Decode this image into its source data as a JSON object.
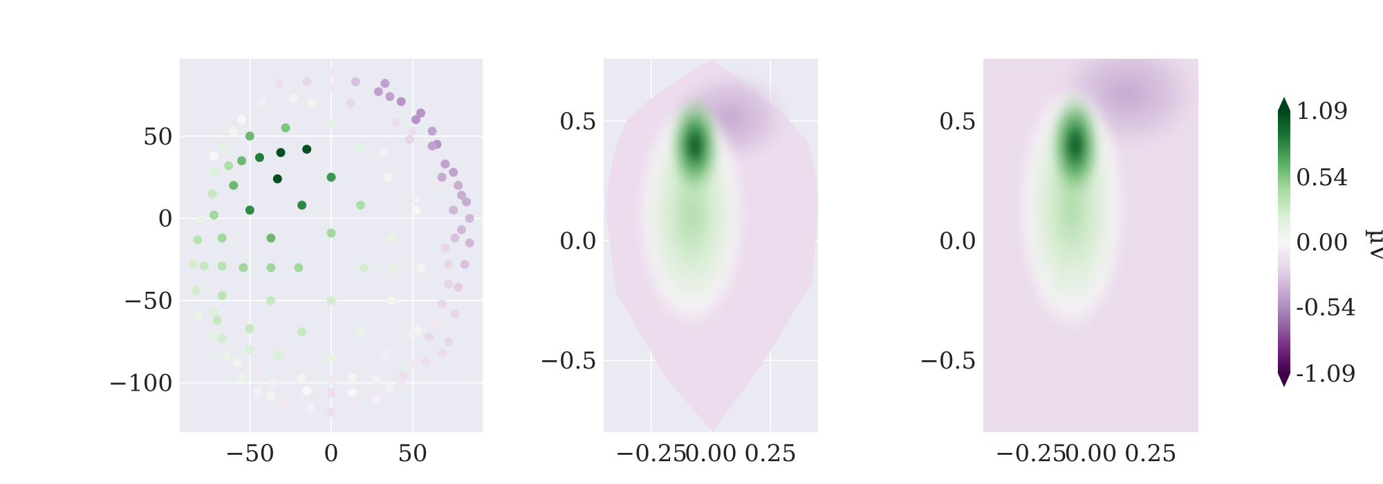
{
  "chart_data": [
    {
      "type": "scatter",
      "title": "",
      "xlabel": "",
      "ylabel": "",
      "xlim": [
        -93,
        93
      ],
      "ylim": [
        -130,
        97
      ],
      "xticks": [
        -50,
        0,
        50
      ],
      "xtick_labels": [
        "−50",
        "0",
        "50"
      ],
      "yticks": [
        50,
        0,
        -50,
        -100
      ],
      "ytick_labels": [
        "50",
        "0",
        "−50",
        "−100"
      ],
      "grid": true,
      "color_scale": "PRGn",
      "points": [
        {
          "x": 0,
          "y": 88,
          "v": -0.1
        },
        {
          "x": 0,
          "y": 80,
          "v": -0.1
        },
        {
          "x": -15,
          "y": 83,
          "v": -0.2
        },
        {
          "x": 15,
          "y": 83,
          "v": -0.3
        },
        {
          "x": -32,
          "y": 82,
          "v": -0.15
        },
        {
          "x": 33,
          "y": 82,
          "v": -0.45
        },
        {
          "x": 29,
          "y": 77,
          "v": -0.45
        },
        {
          "x": 36,
          "y": 74,
          "v": -0.45
        },
        {
          "x": 43,
          "y": 71,
          "v": -0.5
        },
        {
          "x": -42,
          "y": 71,
          "v": -0.05
        },
        {
          "x": -23,
          "y": 73,
          "v": 0.05
        },
        {
          "x": -12,
          "y": 70,
          "v": 0.05
        },
        {
          "x": 12,
          "y": 70,
          "v": -0.2
        },
        {
          "x": 55,
          "y": 64,
          "v": -0.5
        },
        {
          "x": 52,
          "y": 60,
          "v": -0.5
        },
        {
          "x": 62,
          "y": 53,
          "v": -0.45
        },
        {
          "x": 50,
          "y": 53,
          "v": -0.15
        },
        {
          "x": 48,
          "y": 48,
          "v": -0.2
        },
        {
          "x": 65,
          "y": 45,
          "v": -0.5
        },
        {
          "x": 62,
          "y": 44,
          "v": -0.45
        },
        {
          "x": 40,
          "y": 58,
          "v": -0.15
        },
        {
          "x": 28,
          "y": 55,
          "v": -0.1
        },
        {
          "x": -28,
          "y": 55,
          "v": 0.55
        },
        {
          "x": -50,
          "y": 50,
          "v": 0.6
        },
        {
          "x": -60,
          "y": 53,
          "v": 0.05
        },
        {
          "x": -55,
          "y": 60,
          "v": 0.0
        },
        {
          "x": -38,
          "y": 60,
          "v": -0.1
        },
        {
          "x": 0,
          "y": 58,
          "v": 0.15
        },
        {
          "x": -15,
          "y": 42,
          "v": 1.05
        },
        {
          "x": -31,
          "y": 40,
          "v": 1.05
        },
        {
          "x": -44,
          "y": 37,
          "v": 0.85
        },
        {
          "x": -55,
          "y": 35,
          "v": 0.6
        },
        {
          "x": -63,
          "y": 32,
          "v": 0.4
        },
        {
          "x": -72,
          "y": 28,
          "v": 0.2
        },
        {
          "x": -67,
          "y": 44,
          "v": 0.15
        },
        {
          "x": -72,
          "y": 38,
          "v": 0.0
        },
        {
          "x": 17,
          "y": 43,
          "v": 0.15
        },
        {
          "x": 32,
          "y": 40,
          "v": -0.05
        },
        {
          "x": 70,
          "y": 33,
          "v": -0.45
        },
        {
          "x": 75,
          "y": 28,
          "v": -0.45
        },
        {
          "x": 68,
          "y": 25,
          "v": -0.4
        },
        {
          "x": 78,
          "y": 20,
          "v": -0.4
        },
        {
          "x": 80,
          "y": 14,
          "v": -0.4
        },
        {
          "x": 83,
          "y": 10,
          "v": -0.4
        },
        {
          "x": 63,
          "y": 20,
          "v": -0.1
        },
        {
          "x": 75,
          "y": 5,
          "v": -0.35
        },
        {
          "x": 85,
          "y": 0,
          "v": -0.35
        },
        {
          "x": 80,
          "y": -7,
          "v": -0.35
        },
        {
          "x": 85,
          "y": -15,
          "v": -0.35
        },
        {
          "x": 76,
          "y": -12,
          "v": -0.3
        },
        {
          "x": 70,
          "y": -18,
          "v": -0.2
        },
        {
          "x": 52,
          "y": 12,
          "v": -0.05
        },
        {
          "x": 52,
          "y": 5,
          "v": 0.0
        },
        {
          "x": 35,
          "y": 25,
          "v": 0.05
        },
        {
          "x": -33,
          "y": 24,
          "v": 1.05
        },
        {
          "x": -60,
          "y": 20,
          "v": 0.6
        },
        {
          "x": -73,
          "y": 15,
          "v": 0.3
        },
        {
          "x": -50,
          "y": 5,
          "v": 0.8
        },
        {
          "x": -18,
          "y": 8,
          "v": 0.8
        },
        {
          "x": 0,
          "y": 25,
          "v": 0.75
        },
        {
          "x": 18,
          "y": 8,
          "v": 0.4
        },
        {
          "x": -72,
          "y": 2,
          "v": 0.45
        },
        {
          "x": -80,
          "y": 0,
          "v": 0.1
        },
        {
          "x": -82,
          "y": -13,
          "v": 0.35
        },
        {
          "x": -67,
          "y": -12,
          "v": 0.45
        },
        {
          "x": -37,
          "y": -12,
          "v": 0.6
        },
        {
          "x": 0,
          "y": -9,
          "v": 0.45
        },
        {
          "x": 37,
          "y": -12,
          "v": 0.1
        },
        {
          "x": -85,
          "y": -28,
          "v": 0.25
        },
        {
          "x": -78,
          "y": -29,
          "v": 0.3
        },
        {
          "x": -67,
          "y": -29,
          "v": 0.35
        },
        {
          "x": -54,
          "y": -30,
          "v": 0.45
        },
        {
          "x": -37,
          "y": -30,
          "v": 0.45
        },
        {
          "x": -20,
          "y": -30,
          "v": 0.45
        },
        {
          "x": 20,
          "y": -30,
          "v": 0.25
        },
        {
          "x": 38,
          "y": -30,
          "v": 0.15
        },
        {
          "x": 55,
          "y": -30,
          "v": 0.05
        },
        {
          "x": 72,
          "y": -28,
          "v": -0.2
        },
        {
          "x": 82,
          "y": -28,
          "v": -0.3
        },
        {
          "x": 72,
          "y": -40,
          "v": -0.2
        },
        {
          "x": 78,
          "y": -42,
          "v": -0.25
        },
        {
          "x": -83,
          "y": -44,
          "v": 0.25
        },
        {
          "x": -67,
          "y": -47,
          "v": 0.35
        },
        {
          "x": -37,
          "y": -50,
          "v": 0.3
        },
        {
          "x": 0,
          "y": -50,
          "v": 0.25
        },
        {
          "x": 37,
          "y": -50,
          "v": 0.05
        },
        {
          "x": 68,
          "y": -52,
          "v": -0.2
        },
        {
          "x": 76,
          "y": -58,
          "v": -0.2
        },
        {
          "x": -72,
          "y": -57,
          "v": 0.2
        },
        {
          "x": -70,
          "y": -62,
          "v": 0.3
        },
        {
          "x": -82,
          "y": -60,
          "v": 0.1
        },
        {
          "x": 65,
          "y": -65,
          "v": -0.1
        },
        {
          "x": 53,
          "y": -68,
          "v": 0.05
        },
        {
          "x": 60,
          "y": -72,
          "v": -0.2
        },
        {
          "x": -73,
          "y": -71,
          "v": 0.15
        },
        {
          "x": -67,
          "y": -73,
          "v": 0.25
        },
        {
          "x": -50,
          "y": -67,
          "v": 0.3
        },
        {
          "x": -18,
          "y": -69,
          "v": 0.3
        },
        {
          "x": 18,
          "y": -69,
          "v": 0.1
        },
        {
          "x": 50,
          "y": -71,
          "v": -0.05
        },
        {
          "x": 72,
          "y": -75,
          "v": -0.2
        },
        {
          "x": 68,
          "y": -82,
          "v": -0.15
        },
        {
          "x": -64,
          "y": -84,
          "v": 0.1
        },
        {
          "x": -58,
          "y": -88,
          "v": 0.05
        },
        {
          "x": -50,
          "y": -80,
          "v": 0.2
        },
        {
          "x": -33,
          "y": -83,
          "v": 0.2
        },
        {
          "x": 0,
          "y": -85,
          "v": 0.1
        },
        {
          "x": 33,
          "y": -83,
          "v": -0.05
        },
        {
          "x": 58,
          "y": -87,
          "v": -0.15
        },
        {
          "x": 50,
          "y": -88,
          "v": -0.1
        },
        {
          "x": 65,
          "y": -90,
          "v": -0.1
        },
        {
          "x": -55,
          "y": -97,
          "v": 0.1
        },
        {
          "x": -45,
          "y": -95,
          "v": -0.1
        },
        {
          "x": -35,
          "y": -100,
          "v": -0.05
        },
        {
          "x": -18,
          "y": -97,
          "v": 0.05
        },
        {
          "x": 0,
          "y": -98,
          "v": -0.1
        },
        {
          "x": 13,
          "y": -97,
          "v": 0.05
        },
        {
          "x": 28,
          "y": -98,
          "v": -0.05
        },
        {
          "x": 44,
          "y": -96,
          "v": -0.15
        },
        {
          "x": -45,
          "y": -105,
          "v": -0.05
        },
        {
          "x": -37,
          "y": -108,
          "v": 0.05
        },
        {
          "x": -28,
          "y": -105,
          "v": -0.1
        },
        {
          "x": -15,
          "y": -105,
          "v": 0.0
        },
        {
          "x": 0,
          "y": -106,
          "v": -0.15
        },
        {
          "x": 13,
          "y": -106,
          "v": 0.0
        },
        {
          "x": 28,
          "y": -105,
          "v": -0.1
        },
        {
          "x": 36,
          "y": -103,
          "v": -0.05
        },
        {
          "x": 43,
          "y": -101,
          "v": -0.1
        },
        {
          "x": -30,
          "y": -113,
          "v": -0.1
        },
        {
          "x": -13,
          "y": -115,
          "v": -0.05
        },
        {
          "x": 0,
          "y": -118,
          "v": -0.15
        },
        {
          "x": 14,
          "y": -113,
          "v": -0.1
        },
        {
          "x": 28,
          "y": -110,
          "v": -0.05
        }
      ]
    },
    {
      "type": "heatmap",
      "title": "",
      "xlabel": "",
      "ylabel": "",
      "xlim": [
        -0.45,
        0.45
      ],
      "ylim": [
        -0.8,
        0.76
      ],
      "xticks": [
        -0.25,
        0.0,
        0.25
      ],
      "xtick_labels": [
        "−0.25",
        "0.00",
        "0.25"
      ],
      "yticks": [
        0.5,
        0.0,
        -0.5
      ],
      "ytick_labels": [
        "0.5",
        "0.0",
        "−0.5"
      ],
      "grid": true,
      "shape": "head-outline",
      "color_scale": "PRGn"
    },
    {
      "type": "heatmap",
      "title": "",
      "xlabel": "",
      "ylabel": "",
      "xlim": [
        -0.45,
        0.45
      ],
      "ylim": [
        -0.8,
        0.76
      ],
      "xticks": [
        -0.25,
        0.0,
        0.25
      ],
      "xtick_labels": [
        "−0.25",
        "0.00",
        "0.25"
      ],
      "yticks": [
        0.5,
        0.0,
        -0.5
      ],
      "ytick_labels": [
        "0.5",
        "0.0",
        "−0.5"
      ],
      "grid": false,
      "shape": "full-rectangle",
      "color_scale": "PRGn"
    }
  ],
  "colorbar": {
    "label": "µV",
    "min": -1.09,
    "max": 1.09,
    "ticks": [
      1.09,
      0.54,
      0.0,
      -0.54,
      -1.09
    ],
    "tick_labels": [
      "1.09",
      "0.54",
      "0.00",
      "-0.54",
      "-1.09"
    ],
    "cmap_stops": [
      "#40004b",
      "#762a83",
      "#9970ab",
      "#c2a5cf",
      "#e7d4e8",
      "#f7f7f7",
      "#d9f0d3",
      "#a6dba0",
      "#5aae61",
      "#1b7837",
      "#00441b"
    ]
  },
  "colors": {
    "axes_background": "#eaeaf2",
    "grid": "#ffffff",
    "figure_background": "#ffffff"
  }
}
